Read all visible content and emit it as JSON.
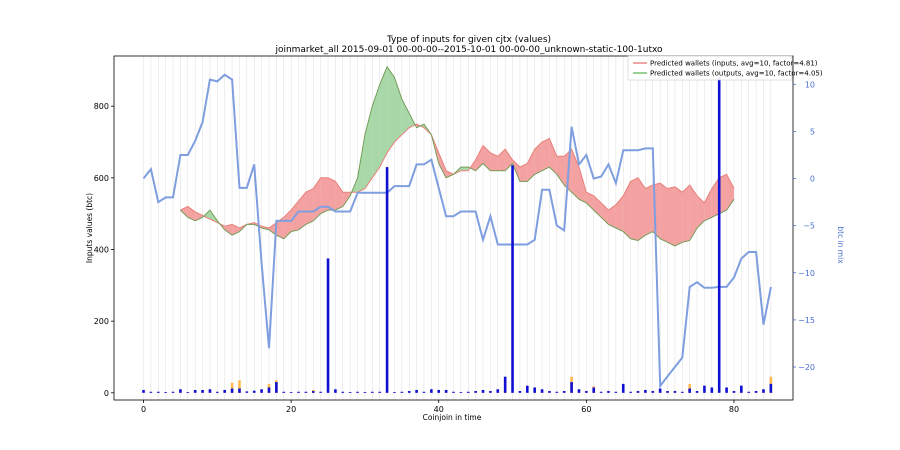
{
  "chart_data": {
    "type": "line",
    "title": "Type of inputs for given cjtx (values)",
    "subtitle": "joinmarket_all 2015-09-01 00-00-00--2015-10-01 00-00-00_unknown-static-100-1utxo",
    "xlabel": "Coinjoin in time",
    "ylabel": "Inputs values (btc)",
    "y2label": "btc in mix",
    "xlim": [
      -4,
      88
    ],
    "ylim": [
      -20,
      940
    ],
    "y2lim": [
      -23.5,
      13
    ],
    "xticks": [
      0,
      20,
      40,
      60,
      80
    ],
    "yticks": [
      0,
      200,
      400,
      600,
      800
    ],
    "y2ticks": [
      -20,
      -15,
      -10,
      -5,
      0,
      5,
      10
    ],
    "grid": "vertical lines at each coinjoin",
    "legend": {
      "placement": "top-right",
      "entries": [
        {
          "label": "Predicted wallets (inputs, avg=10, factor=4.81)",
          "color": "#e8807a"
        },
        {
          "label": "Predicted wallets (outputs, avg=10, factor=4.05)",
          "color": "#6cbf6c"
        }
      ]
    },
    "colors": {
      "predicted_inputs": "#e8807a",
      "predicted_outputs": "#6cbf6c",
      "fill_inputs_greater": "#f4a1a1",
      "fill_outputs_greater": "#a8d8a8",
      "btc_in_mix": "#7f9ee0",
      "input_bars": "#1010d0",
      "minor_bars": "#ffb84d",
      "gridline": "#dddddd"
    },
    "x": [
      5,
      6,
      7,
      8,
      9,
      10,
      11,
      12,
      13,
      14,
      15,
      16,
      17,
      18,
      19,
      20,
      21,
      22,
      23,
      24,
      25,
      26,
      27,
      28,
      29,
      30,
      31,
      32,
      33,
      34,
      35,
      36,
      37,
      38,
      39,
      40,
      41,
      42,
      43,
      44,
      45,
      46,
      47,
      48,
      49,
      50,
      51,
      52,
      53,
      54,
      55,
      56,
      57,
      58,
      59,
      60,
      61,
      62,
      63,
      64,
      65,
      66,
      67,
      68,
      69,
      70,
      71,
      72,
      73,
      74,
      75,
      76,
      77,
      78,
      79,
      80
    ],
    "predicted_inputs": [
      510,
      520,
      505,
      495,
      485,
      475,
      465,
      470,
      460,
      470,
      475,
      465,
      460,
      475,
      490,
      510,
      535,
      560,
      570,
      600,
      600,
      590,
      560,
      560,
      560,
      570,
      600,
      630,
      670,
      700,
      720,
      740,
      750,
      740,
      720,
      670,
      620,
      610,
      620,
      620,
      650,
      690,
      670,
      660,
      680,
      650,
      630,
      640,
      680,
      700,
      710,
      660,
      660,
      680,
      630,
      560,
      550,
      530,
      510,
      525,
      550,
      590,
      600,
      570,
      580,
      585,
      570,
      575,
      560,
      580,
      550,
      530,
      570,
      600,
      610,
      570
    ],
    "predicted_outputs": [
      510,
      490,
      480,
      490,
      510,
      480,
      455,
      440,
      450,
      470,
      470,
      460,
      455,
      440,
      430,
      450,
      455,
      470,
      480,
      500,
      510,
      510,
      520,
      550,
      600,
      720,
      800,
      860,
      910,
      880,
      820,
      780,
      740,
      750,
      720,
      640,
      600,
      610,
      630,
      630,
      620,
      640,
      620,
      620,
      620,
      640,
      590,
      590,
      610,
      620,
      630,
      610,
      580,
      560,
      540,
      530,
      510,
      490,
      470,
      460,
      450,
      430,
      425,
      440,
      450,
      430,
      420,
      410,
      420,
      425,
      460,
      480,
      490,
      500,
      510,
      540
    ],
    "btc_in_mix": {
      "x": [
        0,
        1,
        2,
        3,
        4,
        5,
        6,
        7,
        8,
        9,
        10,
        11,
        12,
        13,
        14,
        15,
        16,
        17,
        18,
        19,
        20,
        21,
        22,
        23,
        24,
        25,
        26,
        27,
        28,
        29,
        30,
        31,
        32,
        33,
        34,
        35,
        36,
        37,
        38,
        39,
        40,
        41,
        42,
        43,
        44,
        45,
        46,
        47,
        48,
        49,
        50,
        51,
        52,
        53,
        54,
        55,
        56,
        57,
        58,
        59,
        60,
        61,
        62,
        63,
        64,
        65,
        66,
        67,
        68,
        69,
        70,
        71,
        72,
        73,
        74,
        75,
        76,
        77,
        78,
        79,
        80,
        81,
        82,
        83,
        84,
        85
      ],
      "values": [
        0,
        1,
        -2.5,
        -2,
        -2,
        2.5,
        2.5,
        4,
        6,
        10.5,
        10.3,
        11,
        10.5,
        -1,
        -1,
        1.5,
        -9,
        -18,
        -4.5,
        -4.5,
        -4.5,
        -3.5,
        -3.5,
        -3.5,
        -3,
        -3,
        -3.5,
        -3.5,
        -3.5,
        -1.5,
        -1.5,
        -1.5,
        -1.5,
        -1.5,
        -0.8,
        -0.8,
        -0.8,
        1.5,
        1.5,
        2,
        -1,
        -4,
        -4,
        -3.5,
        -3.5,
        -3.5,
        -6.5,
        -4,
        -7,
        -7,
        -7,
        -7,
        -7,
        -6.5,
        -1.2,
        -1.2,
        -5,
        -5.5,
        5.5,
        1.5,
        2.5,
        0,
        0.2,
        1.5,
        -0.5,
        3,
        3,
        3,
        3.2,
        3.2,
        -22,
        -21,
        -20,
        -19,
        -11.5,
        -11,
        -11.6,
        -11.6,
        -11.5,
        -11.5,
        -10.5,
        -8.5,
        -7.8,
        -7.8,
        -15.5,
        -11.5
      ]
    },
    "input_bars": [
      {
        "x": 0,
        "value": 8
      },
      {
        "x": 1,
        "value": 3
      },
      {
        "x": 2,
        "value": 3
      },
      {
        "x": 3,
        "value": 2
      },
      {
        "x": 4,
        "value": 3
      },
      {
        "x": 5,
        "value": 10
      },
      {
        "x": 6,
        "value": 2
      },
      {
        "x": 7,
        "value": 8
      },
      {
        "x": 8,
        "value": 8
      },
      {
        "x": 9,
        "value": 10
      },
      {
        "x": 10,
        "value": 3
      },
      {
        "x": 11,
        "value": 8
      },
      {
        "x": 12,
        "value": 12
      },
      {
        "x": 13,
        "value": 12
      },
      {
        "x": 14,
        "value": 4
      },
      {
        "x": 15,
        "value": 6
      },
      {
        "x": 16,
        "value": 10
      },
      {
        "x": 17,
        "value": 15
      },
      {
        "x": 18,
        "value": 30
      },
      {
        "x": 19,
        "value": 3
      },
      {
        "x": 20,
        "value": 2
      },
      {
        "x": 21,
        "value": 3
      },
      {
        "x": 22,
        "value": 3
      },
      {
        "x": 23,
        "value": 5
      },
      {
        "x": 24,
        "value": 3
      },
      {
        "x": 25,
        "value": 375
      },
      {
        "x": 26,
        "value": 10
      },
      {
        "x": 27,
        "value": 3
      },
      {
        "x": 28,
        "value": 2
      },
      {
        "x": 29,
        "value": 3
      },
      {
        "x": 30,
        "value": 2
      },
      {
        "x": 31,
        "value": 3
      },
      {
        "x": 32,
        "value": 3
      },
      {
        "x": 33,
        "value": 630
      },
      {
        "x": 34,
        "value": 2
      },
      {
        "x": 35,
        "value": 3
      },
      {
        "x": 36,
        "value": 5
      },
      {
        "x": 37,
        "value": 8
      },
      {
        "x": 38,
        "value": 3
      },
      {
        "x": 39,
        "value": 10
      },
      {
        "x": 40,
        "value": 8
      },
      {
        "x": 41,
        "value": 8
      },
      {
        "x": 42,
        "value": 3
      },
      {
        "x": 43,
        "value": 2
      },
      {
        "x": 44,
        "value": 3
      },
      {
        "x": 45,
        "value": 5
      },
      {
        "x": 46,
        "value": 8
      },
      {
        "x": 47,
        "value": 5
      },
      {
        "x": 48,
        "value": 10
      },
      {
        "x": 49,
        "value": 45
      },
      {
        "x": 50,
        "value": 635
      },
      {
        "x": 51,
        "value": 5
      },
      {
        "x": 52,
        "value": 20
      },
      {
        "x": 53,
        "value": 15
      },
      {
        "x": 54,
        "value": 10
      },
      {
        "x": 55,
        "value": 5
      },
      {
        "x": 56,
        "value": 3
      },
      {
        "x": 57,
        "value": 5
      },
      {
        "x": 58,
        "value": 30
      },
      {
        "x": 59,
        "value": 10
      },
      {
        "x": 60,
        "value": 5
      },
      {
        "x": 61,
        "value": 15
      },
      {
        "x": 62,
        "value": 3
      },
      {
        "x": 63,
        "value": 5
      },
      {
        "x": 64,
        "value": 3
      },
      {
        "x": 65,
        "value": 25
      },
      {
        "x": 66,
        "value": 3
      },
      {
        "x": 67,
        "value": 5
      },
      {
        "x": 68,
        "value": 8
      },
      {
        "x": 69,
        "value": 5
      },
      {
        "x": 70,
        "value": 12
      },
      {
        "x": 71,
        "value": 5
      },
      {
        "x": 72,
        "value": 5
      },
      {
        "x": 73,
        "value": 3
      },
      {
        "x": 74,
        "value": 12
      },
      {
        "x": 75,
        "value": 5
      },
      {
        "x": 76,
        "value": 20
      },
      {
        "x": 77,
        "value": 15
      },
      {
        "x": 78,
        "value": 880
      },
      {
        "x": 79,
        "value": 15
      },
      {
        "x": 80,
        "value": 5
      },
      {
        "x": 81,
        "value": 20
      },
      {
        "x": 82,
        "value": 3
      },
      {
        "x": 83,
        "value": 5
      },
      {
        "x": 84,
        "value": 10
      },
      {
        "x": 85,
        "value": 25
      }
    ],
    "minor_bars": [
      {
        "x": 12,
        "value": 28
      },
      {
        "x": 13,
        "value": 35
      },
      {
        "x": 17,
        "value": 25
      },
      {
        "x": 18,
        "value": 35
      },
      {
        "x": 23,
        "value": 8
      },
      {
        "x": 49,
        "value": 8
      },
      {
        "x": 58,
        "value": 45
      },
      {
        "x": 61,
        "value": 18
      },
      {
        "x": 74,
        "value": 25
      },
      {
        "x": 85,
        "value": 45
      }
    ]
  }
}
